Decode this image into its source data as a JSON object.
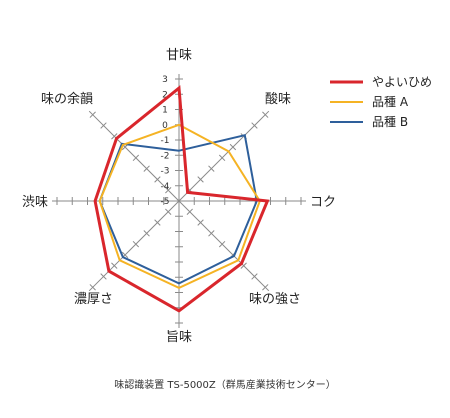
{
  "chart_data": {
    "type": "radar",
    "categories": [
      "甘味",
      "酸味",
      "コク",
      "味の強さ",
      "旨味",
      "濃厚さ",
      "渋味",
      "味の余韻"
    ],
    "scale": {
      "min": -5,
      "max": 3,
      "ticks": [
        "3",
        "2",
        "1",
        "0",
        "-1",
        "-2",
        "-3",
        "-4",
        "-5"
      ]
    },
    "series": [
      {
        "name": "やよいひめ",
        "color": "#d9262c",
        "values": [
          2.4,
          -4.2,
          0.8,
          0.8,
          2.2,
          1.5,
          0.5,
          0.8
        ]
      },
      {
        "name": "品種 A",
        "color": "#f5b324",
        "values": [
          0.0,
          -0.4,
          0.3,
          0.5,
          0.7,
          0.5,
          0.2,
          0.2
        ]
      },
      {
        "name": "品種 B",
        "color": "#2e5f9b",
        "values": [
          -1.7,
          1.1,
          0.1,
          0.1,
          0.4,
          0.2,
          0.2,
          0.3
        ]
      }
    ],
    "legend_position": "top-right"
  },
  "caption": "味認識装置 TS-5000Z（群馬産業技術センター）"
}
